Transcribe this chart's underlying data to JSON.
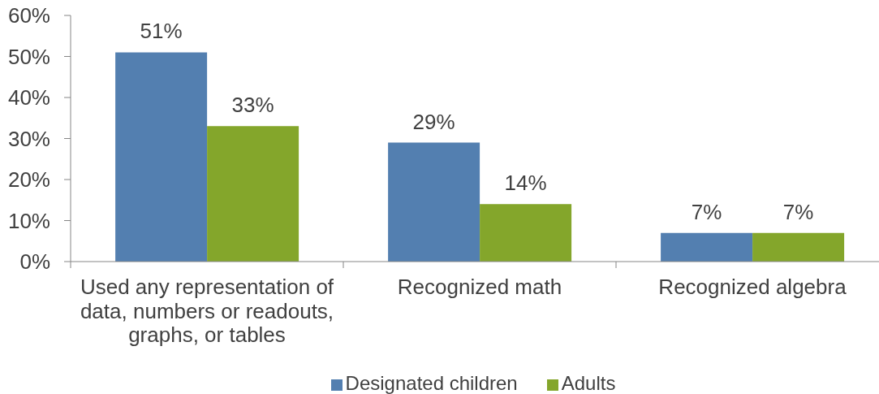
{
  "chart_data": {
    "type": "bar",
    "categories": [
      "Used any representation of data, numbers or readouts, graphs, or tables",
      "Recognized math",
      "Recognized algebra"
    ],
    "series": [
      {
        "name": "Designated children",
        "color": "#537fb0",
        "values": [
          51,
          29,
          7
        ],
        "value_labels": [
          "51%",
          "29%",
          "7%"
        ]
      },
      {
        "name": "Adults",
        "color": "#84a62b",
        "values": [
          33,
          14,
          7
        ],
        "value_labels": [
          "33%",
          "14%",
          "7%"
        ]
      }
    ],
    "ylim": [
      0,
      60
    ],
    "yticks": [
      {
        "value": 0,
        "label": "0%"
      },
      {
        "value": 10,
        "label": "10%"
      },
      {
        "value": 20,
        "label": "20%"
      },
      {
        "value": 30,
        "label": "30%"
      },
      {
        "value": 40,
        "label": "40%"
      },
      {
        "value": 50,
        "label": "50%"
      },
      {
        "value": 60,
        "label": "60%"
      }
    ],
    "legend": "bottom"
  }
}
